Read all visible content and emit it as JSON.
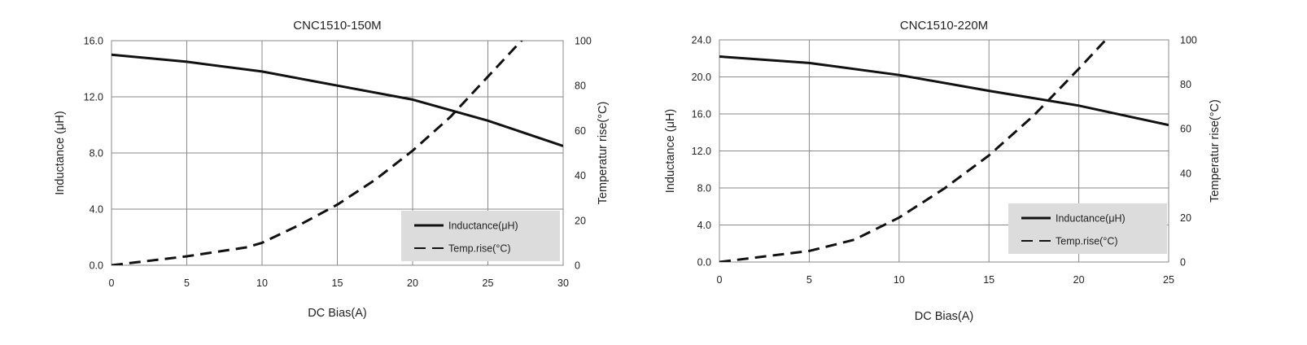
{
  "chart_data": [
    {
      "type": "line",
      "title": "CNC1510-150M",
      "xlabel": "DC Bias(A)",
      "ylabel": "Inductance (μH)",
      "y2label": "Temperatur rise(°C)",
      "xlim": [
        0,
        30
      ],
      "ylim": [
        0,
        16
      ],
      "y2lim": [
        0,
        100
      ],
      "xticks": [
        "0",
        "5",
        "10",
        "15",
        "20",
        "25",
        "30"
      ],
      "yticks": [
        "0.0",
        "4.0",
        "8.0",
        "12.0",
        "16.0"
      ],
      "y2ticks": [
        "0",
        "20",
        "40",
        "60",
        "80",
        "100"
      ],
      "grid": true,
      "legend_position": "bottom-right",
      "series": [
        {
          "name": "Inductance(μH)",
          "axis": "left",
          "style": "solid",
          "color": "#111111",
          "x": [
            0,
            5,
            10,
            15,
            20,
            25,
            30
          ],
          "values": [
            15.0,
            14.5,
            13.8,
            12.8,
            11.8,
            10.3,
            8.5
          ]
        },
        {
          "name": "Temp.rise(°C)",
          "axis": "right",
          "style": "dashed",
          "color": "#111111",
          "x": [
            0,
            5,
            9,
            10,
            12.5,
            15,
            17.5,
            20,
            22.5,
            25,
            27.5
          ],
          "values": [
            0,
            4,
            8,
            10,
            18,
            27,
            38,
            51,
            66,
            84,
            102
          ]
        }
      ]
    },
    {
      "type": "line",
      "title": "CNC1510-220M",
      "xlabel": "DC Bias(A)",
      "ylabel": "Inductance (μH)",
      "y2label": "Temperatur rise(°C)",
      "xlim": [
        0,
        25
      ],
      "ylim": [
        0,
        24
      ],
      "y2lim": [
        0,
        100
      ],
      "xticks": [
        "0",
        "5",
        "10",
        "15",
        "20",
        "25"
      ],
      "yticks": [
        "0.0",
        "4.0",
        "8.0",
        "12.0",
        "16.0",
        "20.0",
        "24.0"
      ],
      "y2ticks": [
        "0",
        "20",
        "40",
        "60",
        "80",
        "100"
      ],
      "grid": true,
      "legend_position": "bottom-right",
      "series": [
        {
          "name": "Inductance(μH)",
          "axis": "left",
          "style": "solid",
          "color": "#111111",
          "x": [
            0,
            5,
            10,
            15,
            20,
            25
          ],
          "values": [
            22.2,
            21.5,
            20.2,
            18.5,
            16.9,
            14.8
          ]
        },
        {
          "name": "Temp.rise(°C)",
          "axis": "right",
          "style": "dashed",
          "color": "#111111",
          "x": [
            0,
            5,
            7.5,
            10,
            12.5,
            15,
            17.5,
            20,
            21.5
          ],
          "values": [
            0,
            5,
            10,
            20,
            33,
            48,
            66,
            87,
            100
          ]
        }
      ]
    }
  ]
}
